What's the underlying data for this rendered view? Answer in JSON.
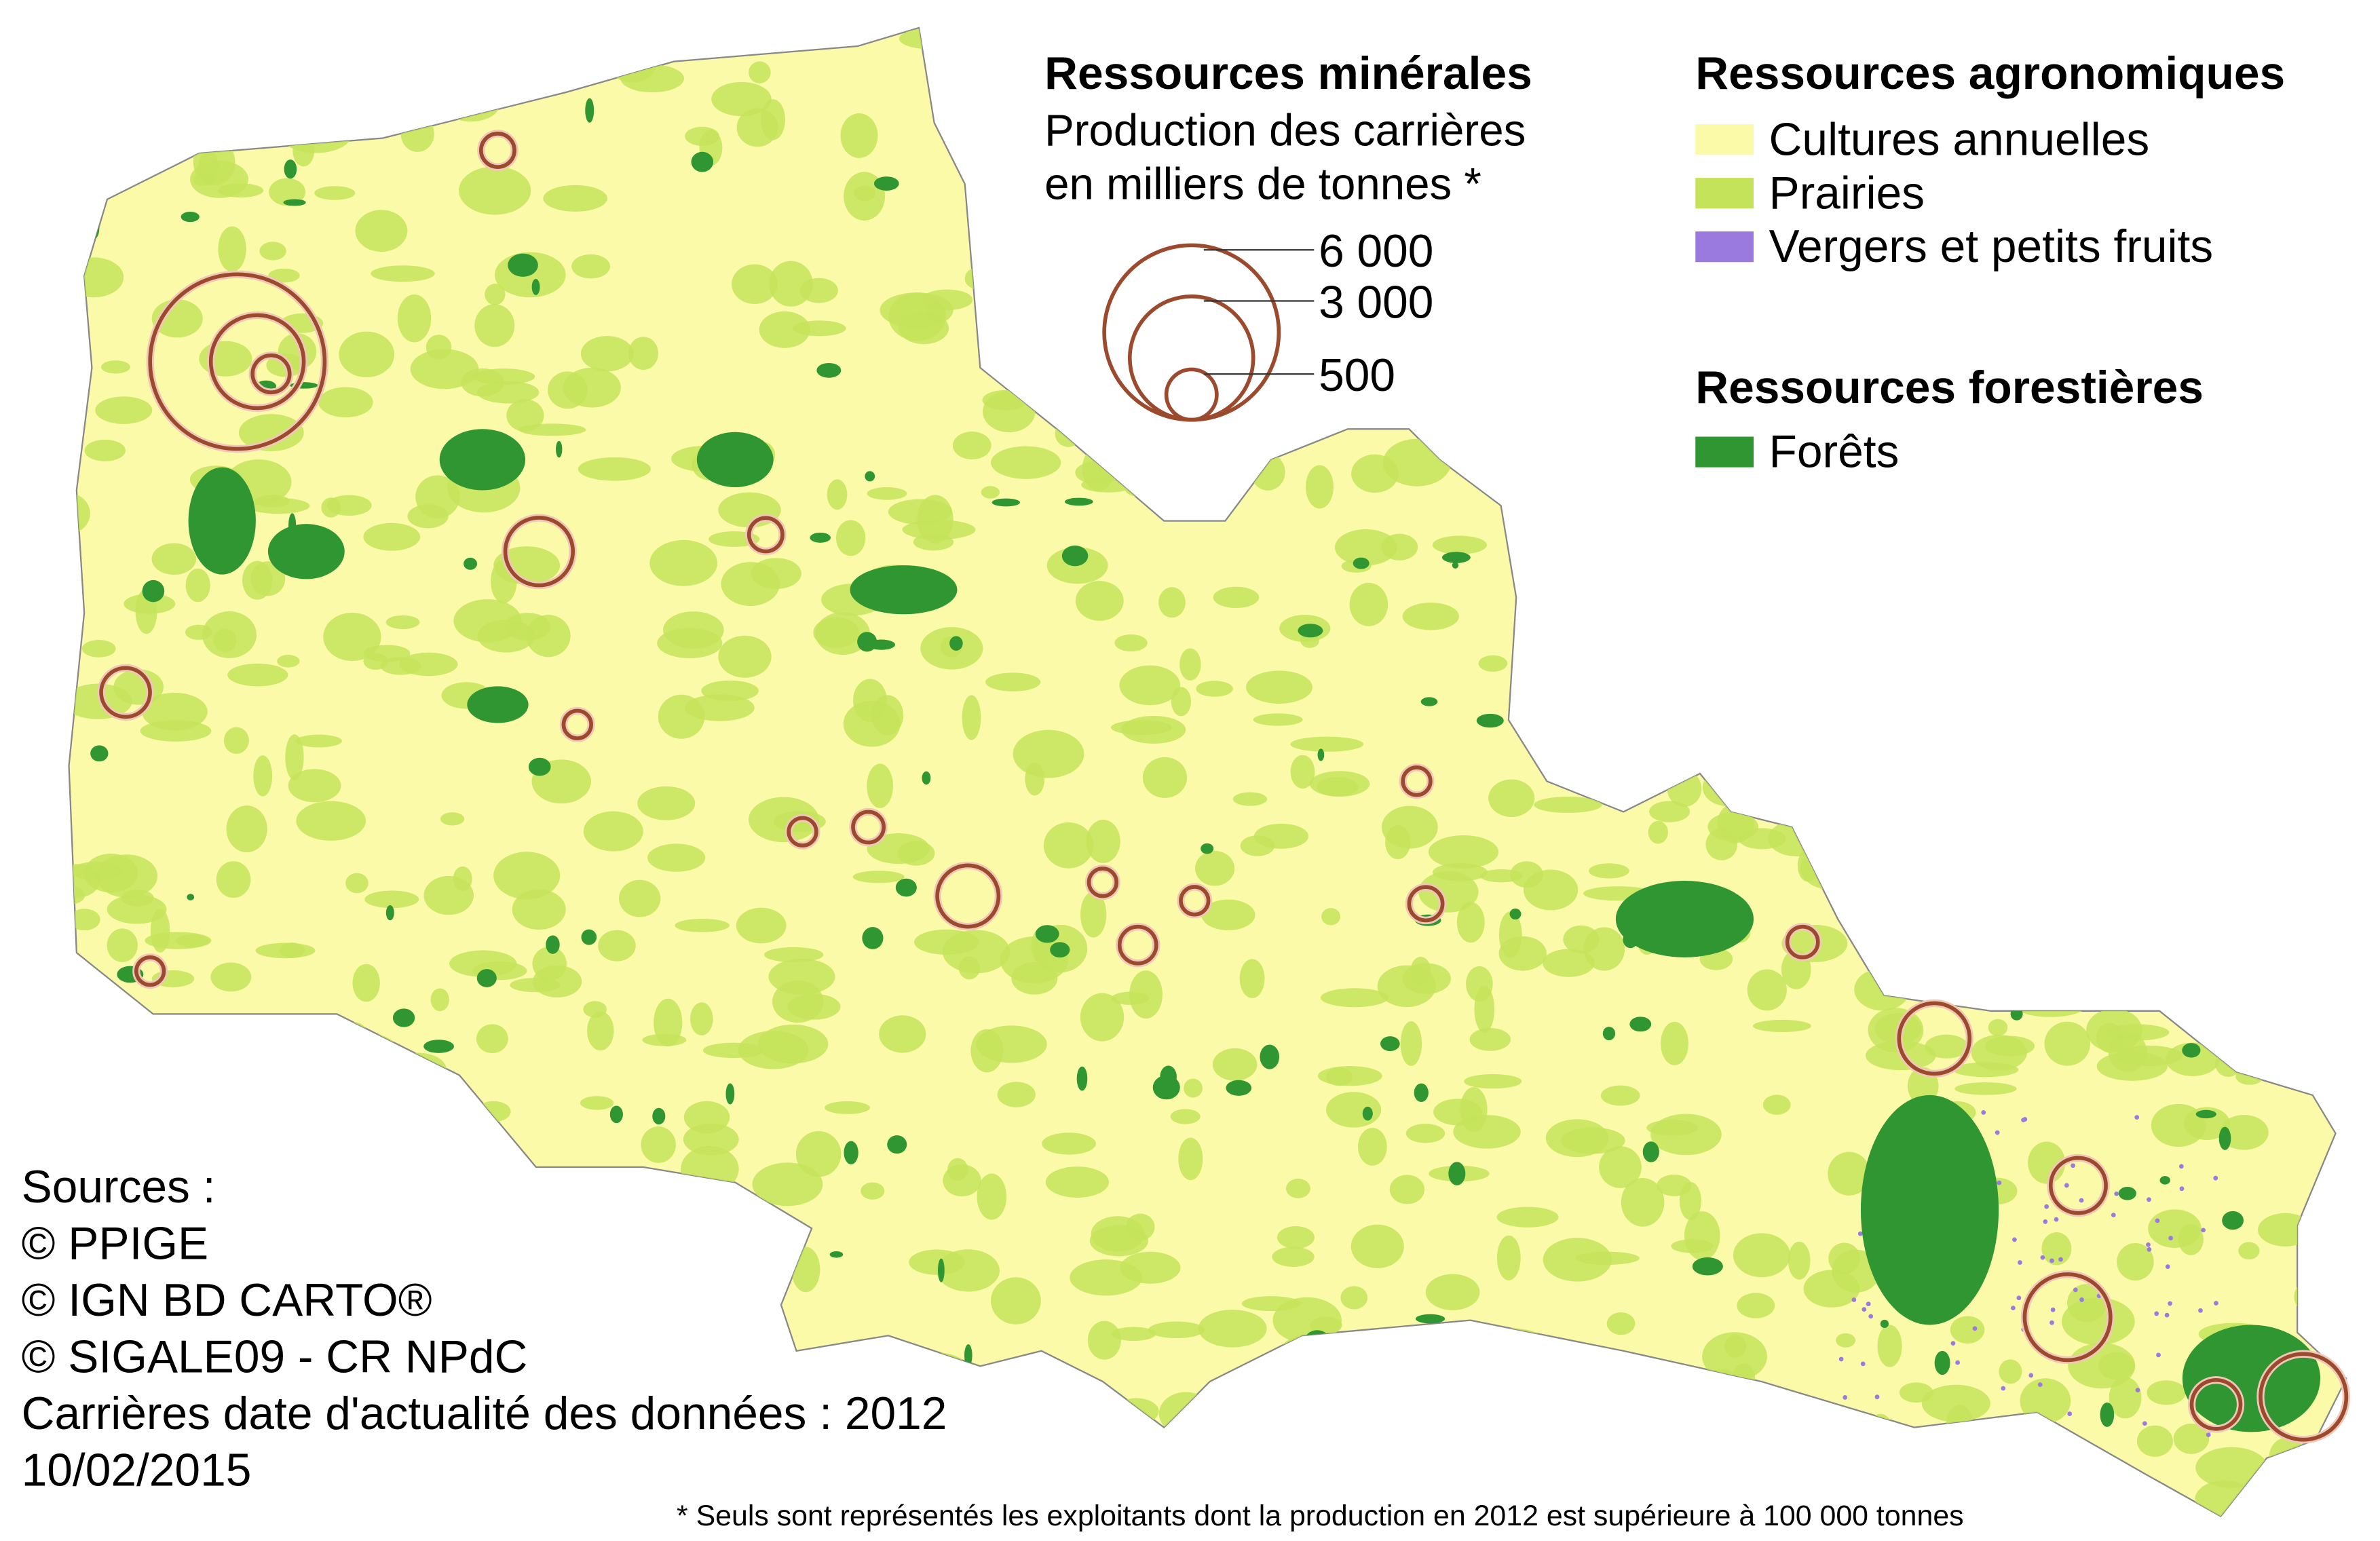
{
  "legend_minerals": {
    "title": "Ressources minérales",
    "subtitle": [
      "Production des carrières",
      "en milliers de tonnes *"
    ],
    "sizes": [
      {
        "value": 6000,
        "label": "6 000"
      },
      {
        "value": 3000,
        "label": "3 000"
      },
      {
        "value": 500,
        "label": "500"
      }
    ],
    "color": "#9c4a2e"
  },
  "legend_agronomic": {
    "title": "Ressources agronomiques",
    "items": [
      {
        "label": "Cultures annuelles",
        "color": "#fbfaa8"
      },
      {
        "label": "Prairies",
        "color": "#c4e35a"
      },
      {
        "label": "Vergers et petits fruits",
        "color": "#9b7ae0"
      }
    ]
  },
  "legend_forest": {
    "title": "Ressources forestières",
    "items": [
      {
        "label": "Forêts",
        "color": "#2f9632"
      }
    ]
  },
  "sources": [
    "Sources :",
    "© PPIGE",
    "© IGN BD CARTO®",
    "© SIGALE09 - CR NPdC",
    "Carrières date d'actualité des données : 2012",
    "10/02/2015"
  ],
  "footnote": "* Seuls sont représentés les exploitants dont la production en 2012 est supérieure à 100 000 tonnes",
  "quarries": [
    {
      "production": 220
    },
    {
      "production": 6000
    },
    {
      "production": 1700
    },
    {
      "production": 270
    },
    {
      "production": 900
    },
    {
      "production": 220
    },
    {
      "production": 470
    },
    {
      "production": 150
    },
    {
      "production": 150
    },
    {
      "production": 185
    },
    {
      "production": 740
    },
    {
      "production": 150
    },
    {
      "production": 150
    },
    {
      "production": 265
    },
    {
      "production": 150
    },
    {
      "production": 220
    },
    {
      "production": 185
    },
    {
      "production": 980
    },
    {
      "production": 600
    },
    {
      "production": 1450
    },
    {
      "production": 470
    },
    {
      "production": 1450
    },
    {
      "production": 150
    }
  ]
}
